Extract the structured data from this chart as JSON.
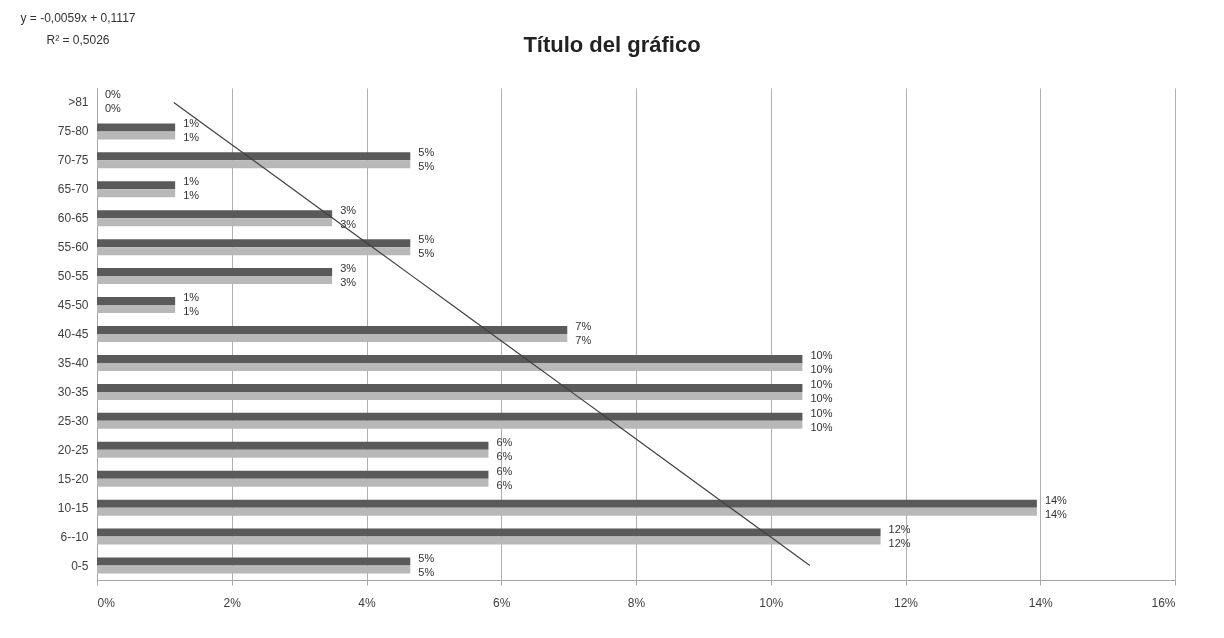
{
  "chart_data": {
    "type": "bar",
    "orientation": "horizontal",
    "title": "Título del gráfico",
    "categories": [
      ">81",
      "75-80",
      "70-75",
      "65-70",
      "60-65",
      "55-60",
      "50-55",
      "45-50",
      "40-45",
      "35-40",
      "30-35",
      "25-30",
      "20-25",
      "15-20",
      "10-15",
      "6--10",
      "0-5"
    ],
    "series": [
      {
        "color": "#5a5a5a",
        "values": [
          0,
          1.16,
          4.65,
          1.16,
          3.49,
          4.65,
          3.49,
          1.16,
          6.98,
          10.47,
          10.47,
          10.47,
          5.81,
          5.81,
          13.95,
          11.63,
          4.65
        ],
        "value_labels": [
          "0%",
          "1%",
          "5%",
          "1%",
          "3%",
          "5%",
          "3%",
          "1%",
          "7%",
          "10%",
          "10%",
          "10%",
          "6%",
          "6%",
          "14%",
          "12%",
          "5%"
        ]
      },
      {
        "color": "#b8b8b8",
        "values": [
          0,
          1.16,
          4.65,
          1.16,
          3.49,
          4.65,
          3.49,
          1.16,
          6.98,
          10.47,
          10.47,
          10.47,
          5.81,
          5.81,
          13.95,
          11.63,
          4.65
        ],
        "value_labels": [
          "0%",
          "1%",
          "5%",
          "1%",
          "3%",
          "5%",
          "3%",
          "1%",
          "7%",
          "10%",
          "10%",
          "10%",
          "6%",
          "6%",
          "14%",
          "12%",
          "5%"
        ]
      },
      {
        "type": "line",
        "color": "#404040",
        "values": [
          1.14,
          1.73,
          2.32,
          2.91,
          3.5,
          4.09,
          4.68,
          5.27,
          5.86,
          6.45,
          7.04,
          7.63,
          8.22,
          8.81,
          9.4,
          9.99,
          10.58
        ]
      }
    ],
    "xlim": [
      0,
      16
    ],
    "xticks": [
      {
        "value": 0,
        "label": "0%"
      },
      {
        "value": 2,
        "label": "2%"
      },
      {
        "value": 4,
        "label": "4%"
      },
      {
        "value": 6,
        "label": "6%"
      },
      {
        "value": 8,
        "label": "8%"
      },
      {
        "value": 10,
        "label": "10%"
      },
      {
        "value": 12,
        "label": "12%"
      },
      {
        "value": 14,
        "label": "14%"
      },
      {
        "value": 16,
        "label": "16%"
      }
    ],
    "grid": "x",
    "annotations": [
      "y = -0,0059x + 0,1117",
      "R² = 0,5026"
    ]
  }
}
